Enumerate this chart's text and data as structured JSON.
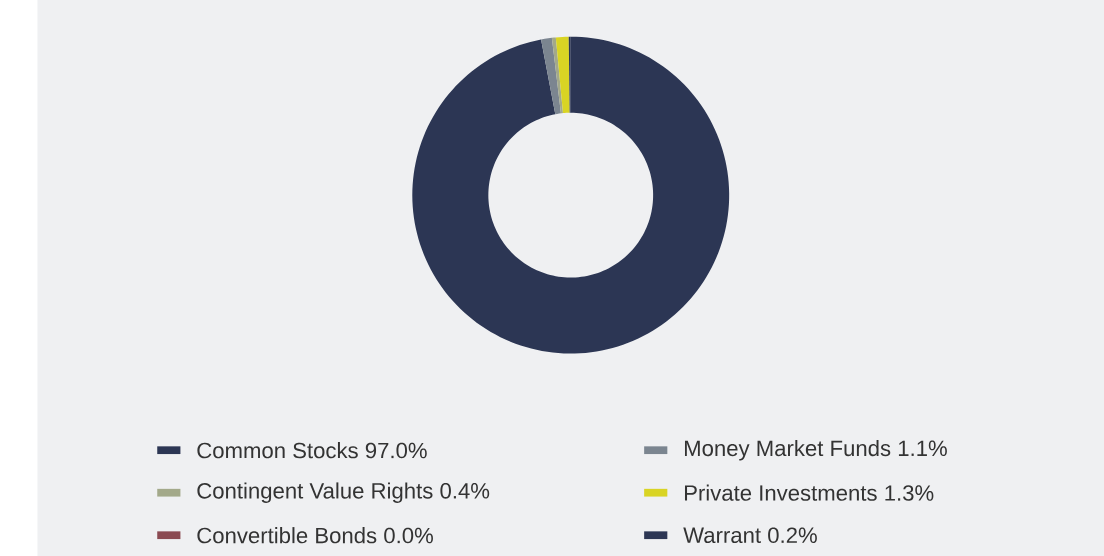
{
  "chart_data": {
    "type": "donut",
    "categories": [
      "Common Stocks",
      "Money Market Funds",
      "Contingent Value Rights",
      "Private Investments",
      "Convertible Bonds",
      "Warrant"
    ],
    "values": [
      97.0,
      1.1,
      0.4,
      1.3,
      0.0,
      0.2
    ],
    "colors": [
      "#2c3654",
      "#7b8590",
      "#a3a98a",
      "#d9d424",
      "#8b4a52",
      "#2c3654"
    ],
    "value_labels": [
      "97.0%",
      "1.1%",
      "0.4%",
      "1.3%",
      "0.0%",
      "0.2%"
    ],
    "legend": "bottom"
  }
}
